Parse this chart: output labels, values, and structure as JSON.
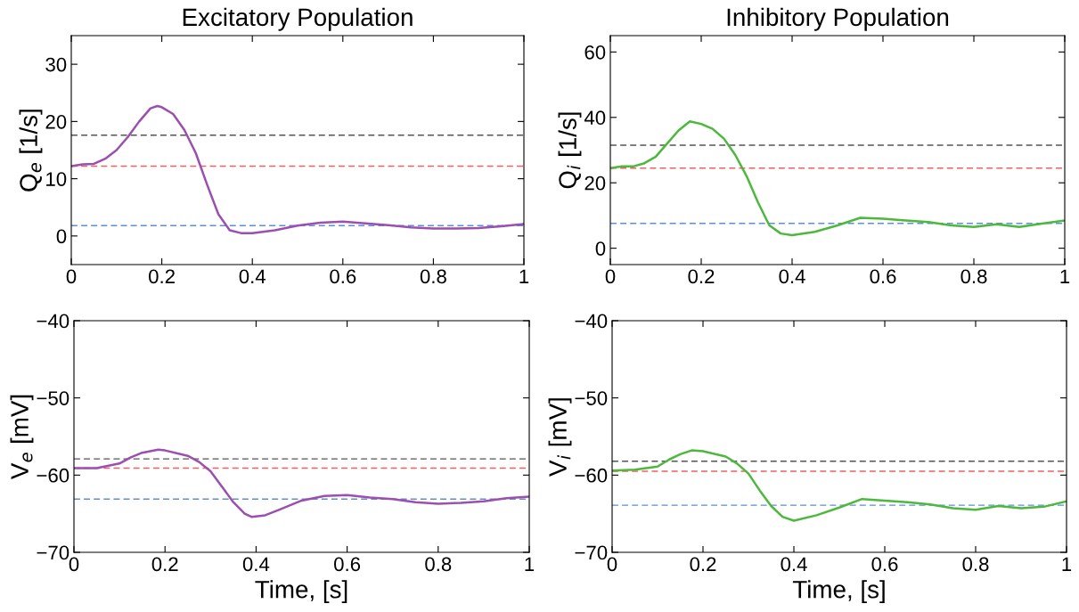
{
  "chart_data": [
    {
      "type": "line",
      "title": "Excitatory Population",
      "ylabel": "Q$_{e}$ [1/s]",
      "xlim": [
        0,
        1
      ],
      "xticks": [
        0,
        {
          "value": 0.2,
          "label": "0.2"
        },
        {
          "value": 0.4,
          "label": "0.4"
        },
        {
          "value": 0.6,
          "label": "0.6"
        },
        {
          "value": 0.8,
          "label": "0.8"
        },
        1
      ],
      "ylim": [
        -5,
        35
      ],
      "yticks": [
        0,
        10,
        20,
        30
      ],
      "series": [
        {
          "color": "#9b4fb0",
          "x": [
            0,
            0.025,
            0.05,
            0.075,
            0.1,
            0.125,
            0.15,
            0.175,
            0.19,
            0.2,
            0.225,
            0.25,
            0.275,
            0.3,
            0.325,
            0.35,
            0.375,
            0.4,
            0.45,
            0.5,
            0.55,
            0.6,
            0.65,
            0.7,
            0.75,
            0.8,
            0.85,
            0.9,
            0.95,
            1
          ],
          "values": [
            12.2,
            12.5,
            12.6,
            13.5,
            15.0,
            17.3,
            20.0,
            22.3,
            22.7,
            22.5,
            21.3,
            18.5,
            14.5,
            9.0,
            3.8,
            1.0,
            0.5,
            0.5,
            1.0,
            1.8,
            2.3,
            2.5,
            2.2,
            1.9,
            1.5,
            1.3,
            1.3,
            1.4,
            1.7,
            2.1
          ]
        }
      ],
      "ref_lines": [
        {
          "axis": "y",
          "value": 17.6,
          "color": "#555555",
          "line_style": "dashed"
        },
        {
          "axis": "y",
          "value": 12.2,
          "color": "#f06060",
          "line_style": "dashed"
        },
        {
          "axis": "y",
          "value": 1.8,
          "color": "#5b8fd6",
          "line_style": "dashed"
        }
      ]
    },
    {
      "type": "line",
      "title": "Inhibitory Population",
      "ylabel": "Q$_{i}$ [1/s]",
      "xlim": [
        0,
        1
      ],
      "xticks": [
        0,
        {
          "value": 0.2,
          "label": "0.2"
        },
        {
          "value": 0.4,
          "label": "0.4"
        },
        {
          "value": 0.6,
          "label": "0.6"
        },
        {
          "value": 0.8,
          "label": "0.8"
        },
        1
      ],
      "ylim": [
        -5,
        65
      ],
      "yticks": [
        0,
        20,
        40,
        60
      ],
      "series": [
        {
          "color": "#4cb83c",
          "x": [
            0,
            0.025,
            0.05,
            0.075,
            0.1,
            0.125,
            0.15,
            0.175,
            0.2,
            0.225,
            0.25,
            0.275,
            0.3,
            0.325,
            0.35,
            0.375,
            0.4,
            0.45,
            0.5,
            0.55,
            0.6,
            0.65,
            0.7,
            0.75,
            0.8,
            0.85,
            0.9,
            0.95,
            1
          ],
          "values": [
            24.5,
            25,
            25,
            26,
            28,
            32,
            36,
            38.8,
            38,
            36.5,
            33.5,
            28.5,
            22,
            14,
            7,
            4.5,
            4,
            5,
            7,
            9.3,
            9,
            8.5,
            8,
            7,
            6.5,
            7.3,
            6.5,
            7.5,
            8.5
          ]
        }
      ],
      "ref_lines": [
        {
          "axis": "y",
          "value": 31.5,
          "color": "#555555",
          "line_style": "dashed"
        },
        {
          "axis": "y",
          "value": 24.5,
          "color": "#f06060",
          "line_style": "dashed"
        },
        {
          "axis": "y",
          "value": 7.6,
          "color": "#5b8fd6",
          "line_style": "dashed"
        }
      ]
    },
    {
      "type": "line",
      "xlabel": "Time, [s]",
      "ylabel": "V$_{e}$ [mV]",
      "xlim": [
        0,
        1
      ],
      "xticks": [
        0,
        {
          "value": 0.2,
          "label": "0.2"
        },
        {
          "value": 0.4,
          "label": "0.4"
        },
        {
          "value": 0.6,
          "label": "0.6"
        },
        {
          "value": 0.8,
          "label": "0.8"
        },
        1
      ],
      "ylim": [
        -70,
        -40
      ],
      "yticks": [
        {
          "value": -70,
          "label": "−70"
        },
        {
          "value": -60,
          "label": "−60"
        },
        {
          "value": -50,
          "label": "−50"
        },
        {
          "value": -40,
          "label": "−40"
        }
      ],
      "series": [
        {
          "color": "#9b4fb0",
          "x": [
            0,
            0.05,
            0.1,
            0.125,
            0.15,
            0.185,
            0.2,
            0.25,
            0.275,
            0.3,
            0.325,
            0.35,
            0.375,
            0.39,
            0.42,
            0.45,
            0.5,
            0.55,
            0.6,
            0.65,
            0.7,
            0.75,
            0.8,
            0.85,
            0.9,
            0.95,
            1
          ],
          "values": [
            -59.1,
            -59.1,
            -58.5,
            -57.7,
            -57.1,
            -56.7,
            -56.8,
            -57.5,
            -58.3,
            -59.5,
            -61.5,
            -63.5,
            -65,
            -65.4,
            -65.2,
            -64.5,
            -63.3,
            -62.7,
            -62.6,
            -62.9,
            -63.1,
            -63.5,
            -63.7,
            -63.6,
            -63.4,
            -63.0,
            -62.8
          ]
        }
      ],
      "ref_lines": [
        {
          "axis": "y",
          "value": -57.9,
          "color": "#555555",
          "line_style": "dashed"
        },
        {
          "axis": "y",
          "value": -59.1,
          "color": "#f06060",
          "line_style": "dashed"
        },
        {
          "axis": "y",
          "value": -63.1,
          "color": "#5b8fd6",
          "line_style": "dashed"
        }
      ]
    },
    {
      "type": "line",
      "xlabel": "Time, [s]",
      "ylabel": "V$_{i}$ [mV]",
      "xlim": [
        0,
        1
      ],
      "xticks": [
        0,
        {
          "value": 0.2,
          "label": "0.2"
        },
        {
          "value": 0.4,
          "label": "0.4"
        },
        {
          "value": 0.6,
          "label": "0.6"
        },
        {
          "value": 0.8,
          "label": "0.8"
        },
        1
      ],
      "ylim": [
        -70,
        -40
      ],
      "yticks": [
        {
          "value": -70,
          "label": "−70"
        },
        {
          "value": -60,
          "label": "−60"
        },
        {
          "value": -50,
          "label": "−50"
        },
        {
          "value": -40,
          "label": "−40"
        }
      ],
      "series": [
        {
          "color": "#4cb83c",
          "x": [
            0,
            0.05,
            0.1,
            0.125,
            0.15,
            0.175,
            0.2,
            0.25,
            0.275,
            0.3,
            0.325,
            0.35,
            0.375,
            0.4,
            0.45,
            0.5,
            0.55,
            0.6,
            0.65,
            0.7,
            0.75,
            0.8,
            0.85,
            0.9,
            0.95,
            1
          ],
          "values": [
            -59.4,
            -59.3,
            -58.9,
            -58,
            -57.3,
            -56.8,
            -56.9,
            -57.6,
            -58.5,
            -59.8,
            -62,
            -64,
            -65.4,
            -65.9,
            -65.2,
            -64.2,
            -63.1,
            -63.3,
            -63.5,
            -63.8,
            -64.3,
            -64.5,
            -64,
            -64.3,
            -64.1,
            -63.4
          ]
        }
      ],
      "ref_lines": [
        {
          "axis": "y",
          "value": -58.2,
          "color": "#555555",
          "line_style": "dashed"
        },
        {
          "axis": "y",
          "value": -59.5,
          "color": "#f06060",
          "line_style": "dashed"
        },
        {
          "axis": "y",
          "value": -63.9,
          "color": "#5b8fd6",
          "line_style": "dashed"
        }
      ]
    }
  ]
}
